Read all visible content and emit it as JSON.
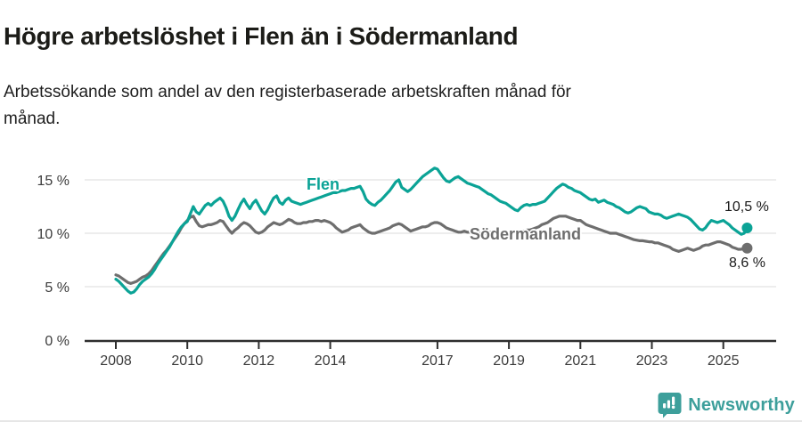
{
  "header": {
    "title": "Högre arbetslöshet i Flen än i Södermanland",
    "subtitle_lines": [
      "Arbetssökande som andel av den registerbaserade arbetskraften månad för",
      "månad."
    ]
  },
  "chart_data": {
    "type": "line",
    "title": "Högre arbetslöshet i Flen än i Södermanland",
    "xlabel": "",
    "ylabel": "",
    "unit": "%",
    "grid": "horizontal",
    "legend_position": "inline-labels-on-lines",
    "x_start_month": "2008-01",
    "x_end_month": "2025-09",
    "points_per_year": 12,
    "ylim": [
      0,
      17
    ],
    "y_ticks": [
      {
        "value": 0,
        "label": "0 %"
      },
      {
        "value": 5,
        "label": "5 %"
      },
      {
        "value": 10,
        "label": "10 %"
      },
      {
        "value": 15,
        "label": "15 %"
      }
    ],
    "x_ticks": [
      {
        "year": 2008,
        "label": "2008"
      },
      {
        "year": 2010,
        "label": "2010"
      },
      {
        "year": 2012,
        "label": "2012"
      },
      {
        "year": 2014,
        "label": "2014"
      },
      {
        "year": 2017,
        "label": "2017"
      },
      {
        "year": 2019,
        "label": "2019"
      },
      {
        "year": 2021,
        "label": "2021"
      },
      {
        "year": 2023,
        "label": "2023"
      },
      {
        "year": 2025,
        "label": "2025"
      }
    ],
    "series": [
      {
        "name": "Flen",
        "color": "#0ba396",
        "end_label": "10,5 %",
        "end_value": 10.5,
        "values": [
          5.7,
          5.5,
          5.2,
          4.9,
          4.6,
          4.4,
          4.5,
          4.8,
          5.2,
          5.5,
          5.7,
          5.9,
          6.2,
          6.6,
          7.1,
          7.5,
          7.9,
          8.3,
          8.7,
          9.2,
          9.7,
          10.2,
          10.6,
          10.9,
          11.1,
          11.8,
          12.5,
          12.0,
          11.8,
          12.2,
          12.6,
          12.8,
          12.6,
          12.9,
          13.1,
          13.3,
          13.0,
          12.4,
          11.6,
          11.2,
          11.6,
          12.2,
          12.8,
          13.2,
          12.7,
          12.3,
          12.8,
          13.1,
          12.6,
          12.1,
          11.8,
          12.2,
          12.8,
          13.3,
          13.5,
          12.9,
          12.7,
          13.1,
          13.3,
          13.0,
          12.9,
          12.8,
          12.7,
          12.8,
          12.9,
          13.0,
          13.1,
          13.2,
          13.3,
          13.4,
          13.5,
          13.6,
          13.7,
          13.8,
          13.8,
          13.9,
          14.0,
          14.0,
          14.1,
          14.2,
          14.2,
          14.3,
          14.4,
          13.9,
          13.2,
          12.9,
          12.7,
          12.6,
          12.9,
          13.1,
          13.4,
          13.7,
          14.0,
          14.4,
          14.8,
          15.0,
          14.3,
          14.1,
          13.9,
          14.1,
          14.4,
          14.7,
          15.0,
          15.3,
          15.5,
          15.7,
          15.9,
          16.1,
          16.0,
          15.6,
          15.2,
          14.9,
          14.8,
          15.0,
          15.2,
          15.3,
          15.1,
          14.9,
          14.7,
          14.6,
          14.5,
          14.4,
          14.3,
          14.1,
          13.9,
          13.7,
          13.6,
          13.4,
          13.2,
          13.0,
          12.9,
          12.8,
          12.6,
          12.4,
          12.2,
          12.1,
          12.4,
          12.6,
          12.7,
          12.6,
          12.7,
          12.7,
          12.8,
          12.9,
          13.0,
          13.3,
          13.6,
          13.9,
          14.2,
          14.4,
          14.6,
          14.5,
          14.3,
          14.2,
          14.0,
          13.9,
          13.8,
          13.6,
          13.4,
          13.2,
          13.1,
          13.2,
          12.9,
          13.0,
          13.1,
          12.9,
          12.8,
          12.7,
          12.5,
          12.4,
          12.2,
          12.0,
          11.9,
          12.0,
          12.2,
          12.4,
          12.5,
          12.4,
          12.3,
          12.0,
          11.9,
          11.8,
          11.8,
          11.7,
          11.5,
          11.4,
          11.5,
          11.6,
          11.7,
          11.8,
          11.7,
          11.6,
          11.5,
          11.3,
          11.0,
          10.7,
          10.4,
          10.3,
          10.5,
          10.9,
          11.2,
          11.1,
          11.0,
          11.1,
          11.2,
          11.0,
          10.8,
          10.5,
          10.3,
          10.1,
          9.9,
          10.0,
          10.5
        ]
      },
      {
        "name": "Södermanland",
        "color": "#6e6e6e",
        "end_label": "8,6 %",
        "end_value": 8.6,
        "values": [
          6.1,
          6.0,
          5.8,
          5.6,
          5.4,
          5.3,
          5.4,
          5.5,
          5.7,
          5.9,
          6.0,
          6.2,
          6.5,
          6.9,
          7.3,
          7.7,
          8.1,
          8.4,
          8.8,
          9.2,
          9.6,
          10.0,
          10.5,
          10.9,
          11.2,
          11.5,
          11.6,
          11.1,
          10.7,
          10.6,
          10.7,
          10.8,
          10.8,
          10.9,
          11.0,
          11.2,
          11.1,
          10.7,
          10.3,
          10.0,
          10.3,
          10.5,
          10.8,
          11.0,
          10.9,
          10.7,
          10.4,
          10.1,
          10.0,
          10.1,
          10.3,
          10.6,
          10.8,
          11.0,
          10.9,
          10.8,
          10.9,
          11.1,
          11.3,
          11.2,
          11.0,
          10.9,
          10.9,
          11.0,
          11.0,
          11.1,
          11.1,
          11.2,
          11.2,
          11.1,
          11.2,
          11.1,
          11.0,
          10.8,
          10.5,
          10.3,
          10.1,
          10.2,
          10.3,
          10.5,
          10.6,
          10.7,
          10.8,
          10.5,
          10.3,
          10.1,
          10.0,
          10.0,
          10.1,
          10.2,
          10.3,
          10.4,
          10.5,
          10.7,
          10.8,
          10.9,
          10.8,
          10.6,
          10.4,
          10.2,
          10.3,
          10.4,
          10.5,
          10.6,
          10.6,
          10.7,
          10.9,
          11.0,
          11.0,
          10.9,
          10.7,
          10.5,
          10.4,
          10.3,
          10.2,
          10.1,
          10.1,
          10.2,
          10.1,
          10.1,
          10.1,
          10.0,
          10.0,
          9.9,
          10.0,
          10.0,
          10.1,
          10.0,
          10.0,
          9.9,
          10.0,
          10.0,
          10.0,
          10.0,
          10.1,
          10.1,
          10.2,
          10.2,
          10.3,
          10.3,
          10.4,
          10.5,
          10.6,
          10.8,
          10.9,
          11.0,
          11.2,
          11.4,
          11.5,
          11.6,
          11.6,
          11.6,
          11.5,
          11.4,
          11.3,
          11.2,
          11.2,
          11.0,
          10.8,
          10.7,
          10.6,
          10.5,
          10.4,
          10.3,
          10.2,
          10.1,
          10.0,
          10.0,
          10.0,
          9.9,
          9.8,
          9.7,
          9.6,
          9.5,
          9.4,
          9.35,
          9.3,
          9.3,
          9.25,
          9.2,
          9.2,
          9.1,
          9.1,
          9.0,
          8.9,
          8.8,
          8.7,
          8.5,
          8.4,
          8.3,
          8.4,
          8.5,
          8.6,
          8.5,
          8.4,
          8.5,
          8.6,
          8.8,
          8.9,
          8.9,
          9.0,
          9.1,
          9.2,
          9.2,
          9.1,
          9.0,
          8.9,
          8.7,
          8.6,
          8.5,
          8.5,
          8.6,
          8.6
        ]
      }
    ]
  },
  "footer": {
    "brand": "Newsworthy"
  },
  "colors": {
    "flen_line": "#0ba396",
    "sodermanland_line": "#6e6e6e",
    "gridline": "#e2e2e2",
    "axis": "#2e2e2e",
    "tick_label": "#3c3c3c",
    "title_text": "#1c1c18",
    "brand_teal": "#3d9f9b"
  }
}
